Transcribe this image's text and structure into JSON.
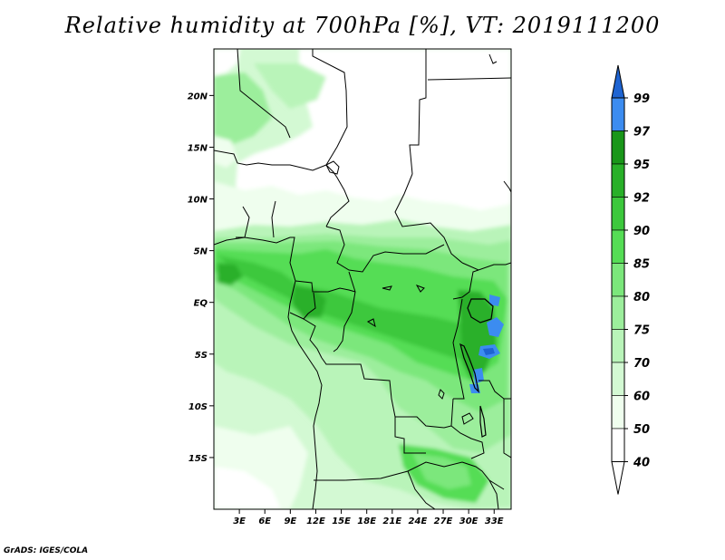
{
  "title": "Relative humidity at 700hPa [%], VT: 2019111200",
  "credit": "GrADS: IGES/COLA",
  "map": {
    "lat_ticks": [
      "20N",
      "15N",
      "10N",
      "5N",
      "EQ",
      "5S",
      "10S",
      "15S"
    ],
    "lon_ticks": [
      "3E",
      "6E",
      "9E",
      "12E",
      "15E",
      "18E",
      "21E",
      "24E",
      "27E",
      "30E",
      "33E"
    ],
    "lon_range": [
      0,
      35
    ],
    "lat_range": [
      -20,
      24.5
    ],
    "field": "relative humidity",
    "units": "%"
  },
  "colorbar": {
    "levels": [
      "99",
      "97",
      "95",
      "92",
      "90",
      "85",
      "80",
      "75",
      "70",
      "60",
      "50",
      "40"
    ],
    "colors": [
      "#1e64d2",
      "#3c8cf0",
      "#199619",
      "#29b029",
      "#3cc83c",
      "#55dd55",
      "#7be77b",
      "#9cee9c",
      "#b9f4b9",
      "#d3f9d3",
      "#effeee",
      "#ffffff"
    ],
    "top_triangle_color": "#1e64d2",
    "bottom_triangle_color": "#ffffff"
  }
}
